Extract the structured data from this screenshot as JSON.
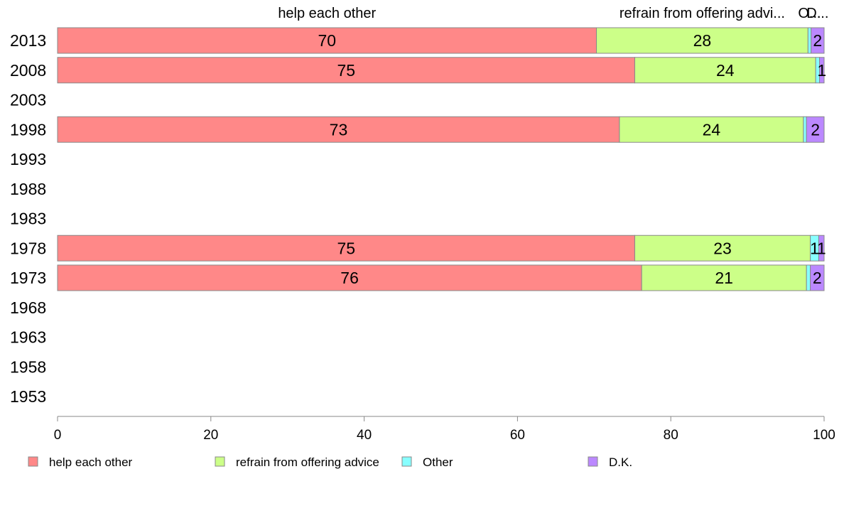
{
  "chart_data": {
    "type": "bar",
    "orientation": "horizontal",
    "stacked": true,
    "categories": [
      "2013",
      "2008",
      "2003",
      "1998",
      "1993",
      "1988",
      "1983",
      "1978",
      "1973",
      "1968",
      "1963",
      "1958",
      "1953"
    ],
    "series": [
      {
        "name": "help each other",
        "color": "#ff8888",
        "values": [
          70.3,
          75.3,
          null,
          73.3,
          null,
          null,
          null,
          75.3,
          76.2,
          null,
          null,
          null,
          null
        ]
      },
      {
        "name": "refrain from offering advice",
        "color": "#ccff88",
        "values": [
          27.6,
          23.6,
          null,
          24.0,
          null,
          null,
          null,
          22.9,
          21.5,
          null,
          null,
          null,
          null
        ]
      },
      {
        "name": "Other",
        "color": "#88ffff",
        "values": [
          0.4,
          0.5,
          null,
          0.4,
          null,
          null,
          null,
          1.1,
          0.5,
          null,
          null,
          null,
          null
        ]
      },
      {
        "name": "D.K.",
        "color": "#bb88ff",
        "values": [
          1.7,
          0.6,
          null,
          2.3,
          null,
          null,
          null,
          0.7,
          1.8,
          null,
          null,
          null,
          null
        ]
      }
    ],
    "data_labels": [
      [
        "70",
        "28",
        "",
        "2"
      ],
      [
        "75",
        "24",
        "",
        "1"
      ],
      null,
      [
        "73",
        "24",
        "",
        "2"
      ],
      null,
      null,
      null,
      [
        "75",
        "23",
        "1",
        "1"
      ],
      [
        "76",
        "21",
        "",
        "2"
      ],
      null,
      null,
      null,
      null
    ],
    "column_headers": [
      "help each other",
      "refrain from offering advi...",
      "O...",
      "D..."
    ],
    "xlim": [
      0,
      100
    ],
    "xticks": [
      "0",
      "20",
      "40",
      "60",
      "80",
      "100"
    ],
    "title": "",
    "xlabel": "",
    "ylabel": "",
    "legend_position": "bottom",
    "grid": false
  }
}
